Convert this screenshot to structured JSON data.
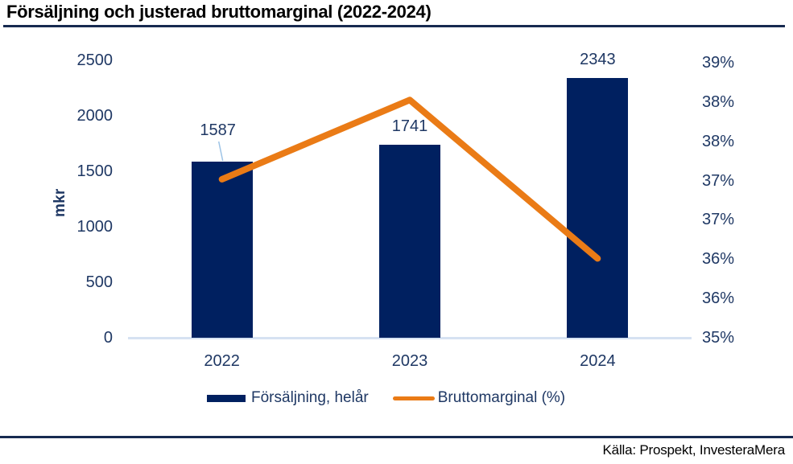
{
  "header": {
    "title": "Försäljning och justerad bruttomarginal (2022-2024)"
  },
  "footer": {
    "source": "Källa: Prospekt, InvesteraMera"
  },
  "colors": {
    "bar": "#002060",
    "line": "#EA7B16",
    "axis_text": "#1F3864",
    "axis_line": "#D6E2F2",
    "divider": "#172A50",
    "leader_line": "#9DC3E6"
  },
  "chart_data": {
    "type": "bar+line combo",
    "title": "Försäljning och justerad bruttomarginal (2022-2024)",
    "categories": [
      "2022",
      "2023",
      "2024"
    ],
    "series": [
      {
        "name": "Försäljning, helår",
        "type": "bar",
        "axis": "left",
        "values": [
          1587,
          1741,
          2343
        ],
        "labels": [
          "1587",
          "1741",
          "2343"
        ]
      },
      {
        "name": "Bruttomarginal (%)",
        "type": "line",
        "axis": "right",
        "values": [
          37.0,
          38.0,
          36.0
        ]
      }
    ],
    "left_axis": {
      "title": "mkr",
      "ticks": [
        "2500",
        "2000",
        "1500",
        "1000",
        "500",
        "0"
      ],
      "range": [
        0,
        2500
      ]
    },
    "right_axis": {
      "ticks": [
        "39%",
        "38%",
        "38%",
        "37%",
        "37%",
        "36%",
        "36%",
        "35%"
      ],
      "range": [
        35,
        38.5
      ]
    },
    "grid": false,
    "legend_position": "bottom"
  },
  "legend": {
    "items": [
      {
        "label": "Försäljning, helår",
        "swatch": "bar"
      },
      {
        "label": "Bruttomarginal (%)",
        "swatch": "line"
      }
    ]
  }
}
